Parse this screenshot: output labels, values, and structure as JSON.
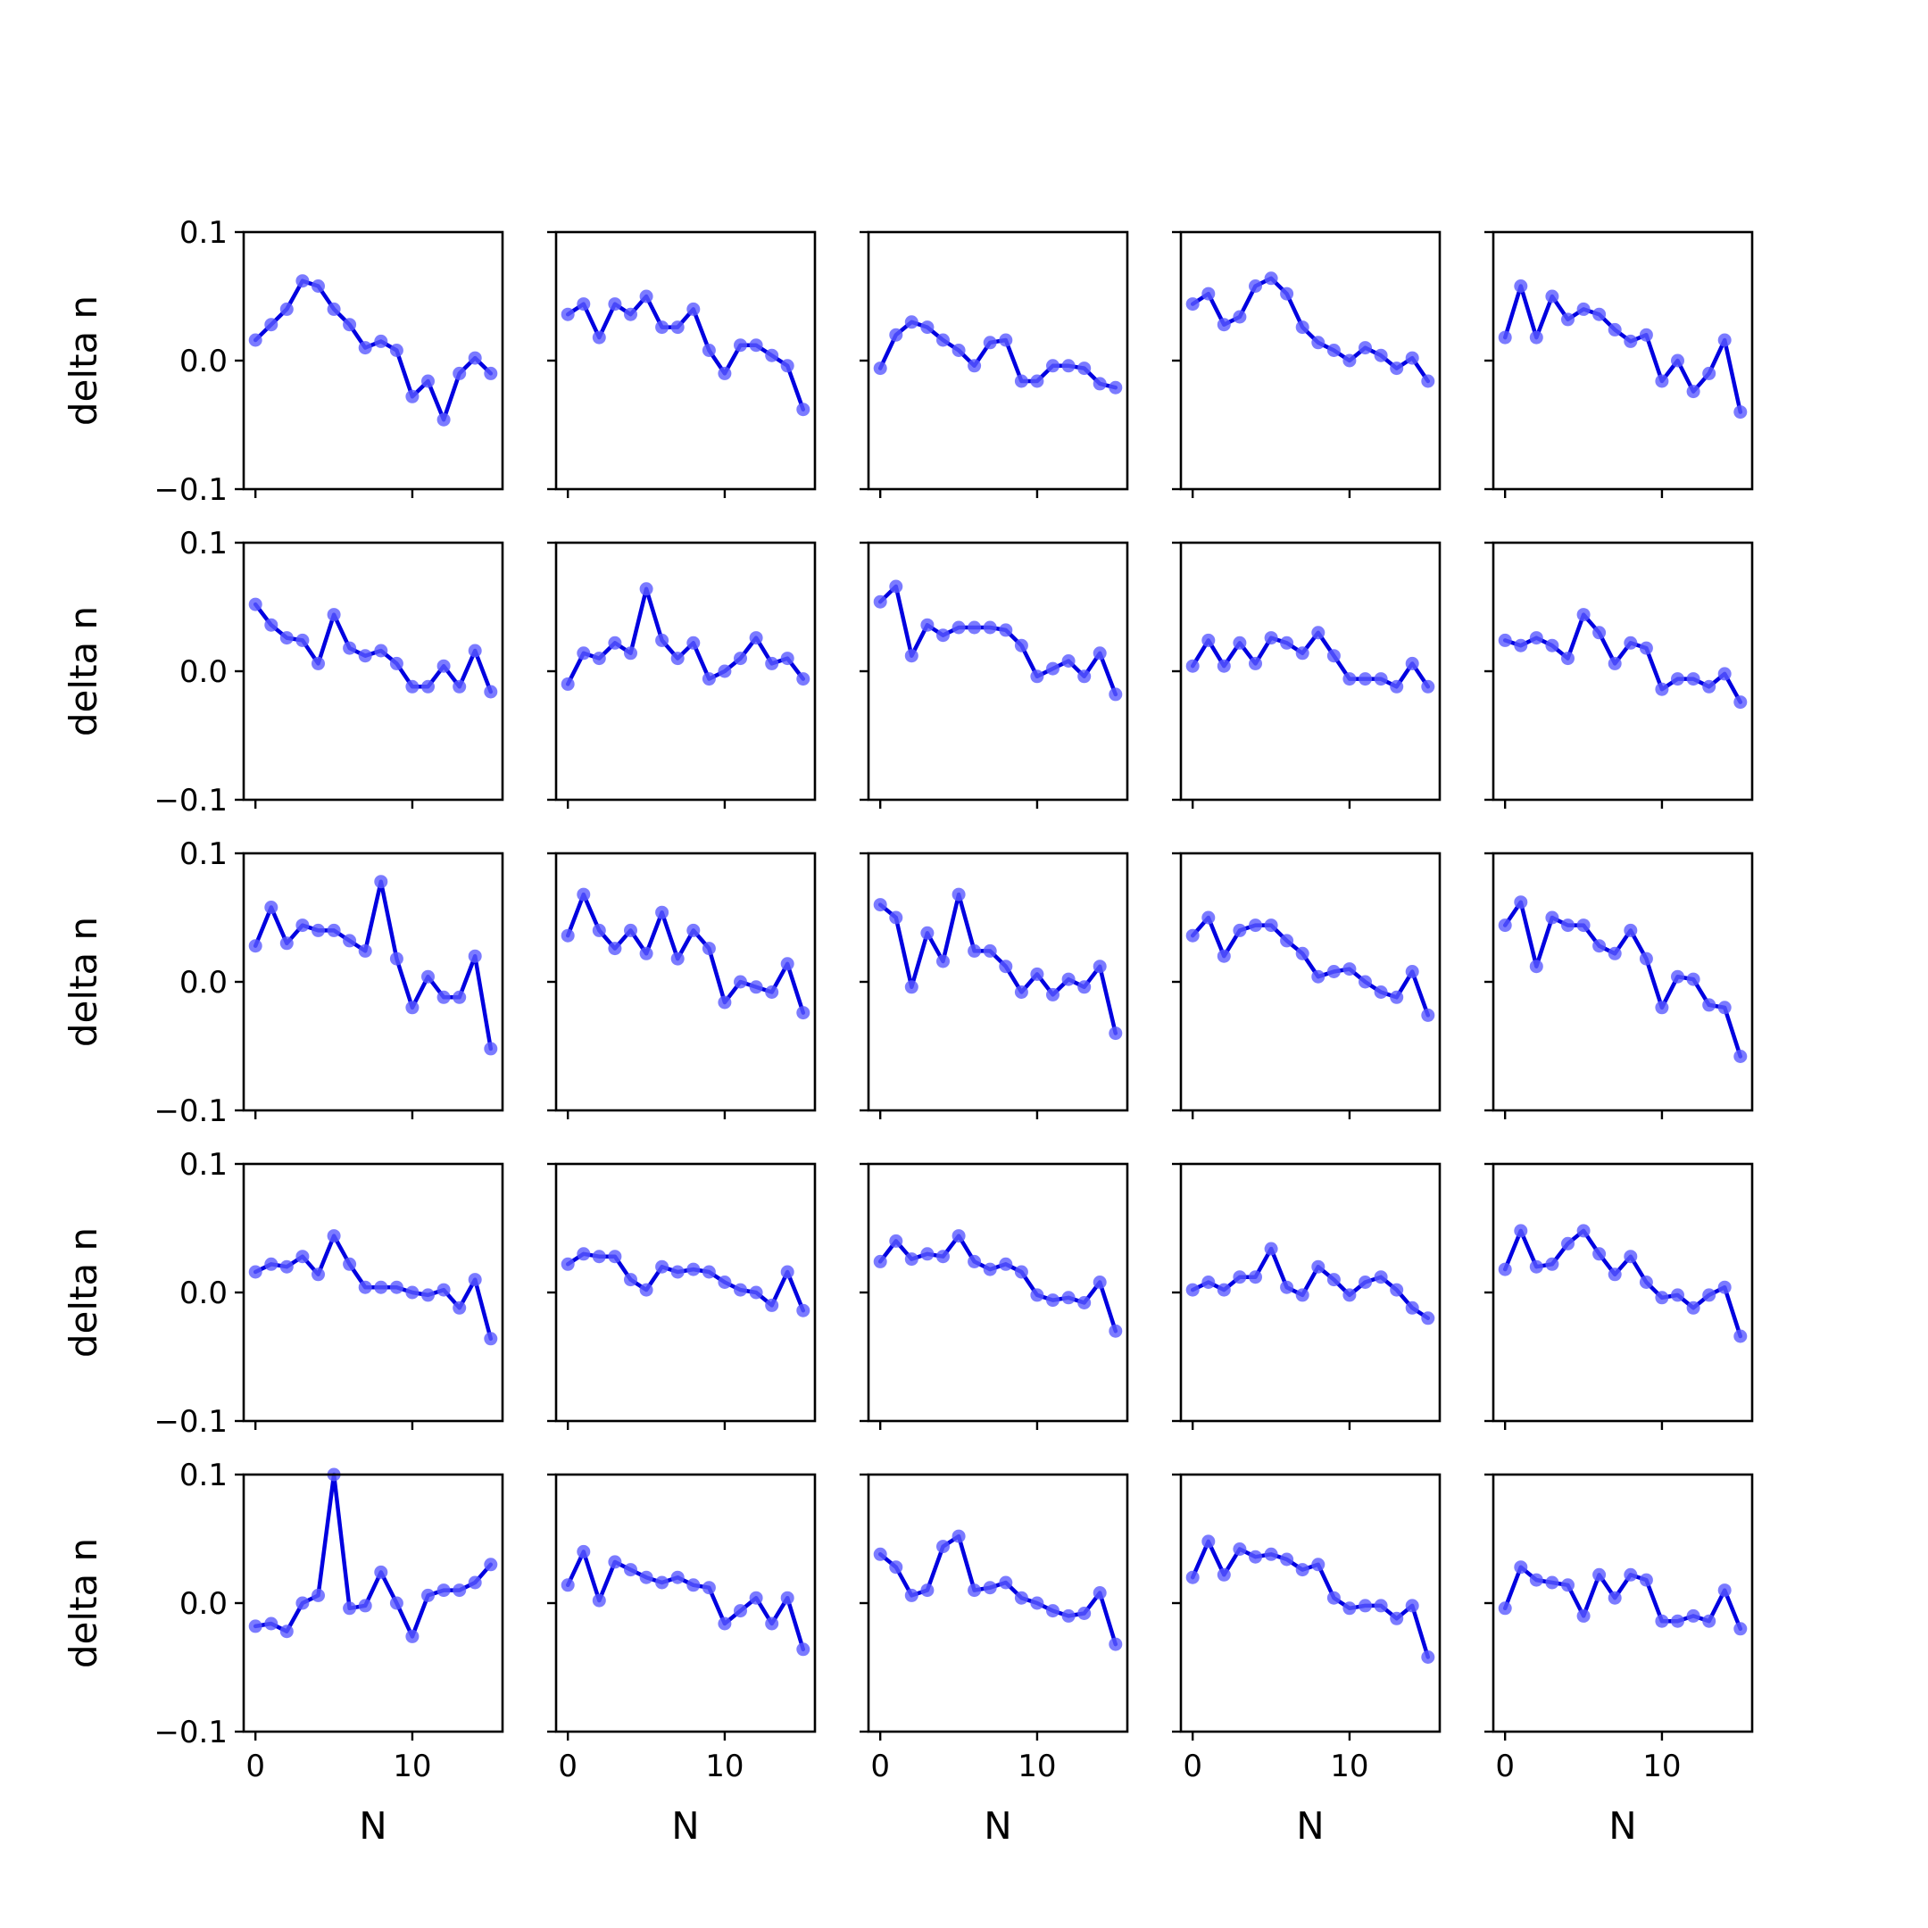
{
  "chart_data": {
    "type": "line",
    "grid": false,
    "layout": "5x5 small multiples, shared axes",
    "xlabel": "N",
    "ylabel": "delta n",
    "xlim": [
      -0.75,
      15.75
    ],
    "ylim": [
      -0.1,
      0.1
    ],
    "xticks": [
      0,
      10
    ],
    "yticks": [
      -0.1,
      0.0,
      0.1
    ],
    "ytick_labels": [
      "−0.1",
      "0.0",
      "0.1"
    ],
    "x": [
      0,
      1,
      2,
      3,
      4,
      5,
      6,
      7,
      8,
      9,
      10,
      11,
      12,
      13,
      14,
      15
    ],
    "line_color": "#0000e0",
    "marker_color": "#5a5aff",
    "panels": [
      [
        0.016,
        0.028,
        0.04,
        0.062,
        0.058,
        0.04,
        0.028,
        0.01,
        0.015,
        0.008,
        -0.028,
        -0.016,
        -0.046,
        -0.01,
        0.002,
        -0.01
      ],
      [
        0.036,
        0.044,
        0.018,
        0.044,
        0.036,
        0.05,
        0.026,
        0.026,
        0.04,
        0.008,
        -0.01,
        0.012,
        0.012,
        0.004,
        -0.004,
        -0.038
      ],
      [
        -0.006,
        0.02,
        0.03,
        0.026,
        0.016,
        0.008,
        -0.004,
        0.014,
        0.016,
        -0.016,
        -0.016,
        -0.004,
        -0.004,
        -0.006,
        -0.018,
        -0.021
      ],
      [
        0.044,
        0.052,
        0.028,
        0.034,
        0.058,
        0.064,
        0.052,
        0.026,
        0.014,
        0.008,
        0.0,
        0.01,
        0.004,
        -0.006,
        0.002,
        -0.016
      ],
      [
        0.018,
        0.058,
        0.018,
        0.05,
        0.032,
        0.04,
        0.036,
        0.024,
        0.015,
        0.02,
        -0.016,
        0.0,
        -0.024,
        -0.01,
        0.016,
        -0.04
      ],
      [
        0.052,
        0.036,
        0.026,
        0.024,
        0.006,
        0.044,
        0.018,
        0.012,
        0.016,
        0.006,
        -0.012,
        -0.012,
        0.004,
        -0.012,
        0.016,
        -0.016
      ],
      [
        -0.01,
        0.014,
        0.01,
        0.022,
        0.014,
        0.064,
        0.024,
        0.01,
        0.022,
        -0.006,
        0.0,
        0.01,
        0.026,
        0.006,
        0.01,
        -0.006
      ],
      [
        0.054,
        0.066,
        0.012,
        0.036,
        0.028,
        0.034,
        0.034,
        0.034,
        0.032,
        0.02,
        -0.004,
        0.002,
        0.008,
        -0.004,
        0.014,
        -0.018
      ],
      [
        0.004,
        0.024,
        0.004,
        0.022,
        0.006,
        0.026,
        0.022,
        0.014,
        0.03,
        0.012,
        -0.006,
        -0.006,
        -0.006,
        -0.012,
        0.006,
        -0.012
      ],
      [
        0.024,
        0.02,
        0.026,
        0.02,
        0.01,
        0.044,
        0.03,
        0.006,
        0.022,
        0.018,
        -0.014,
        -0.006,
        -0.006,
        -0.012,
        -0.002,
        -0.024
      ],
      [
        0.028,
        0.058,
        0.03,
        0.044,
        0.04,
        0.04,
        0.032,
        0.024,
        0.078,
        0.018,
        -0.02,
        0.004,
        -0.012,
        -0.012,
        0.02,
        -0.052
      ],
      [
        0.036,
        0.068,
        0.04,
        0.026,
        0.04,
        0.022,
        0.054,
        0.018,
        0.04,
        0.026,
        -0.016,
        0.0,
        -0.004,
        -0.008,
        0.014,
        -0.024
      ],
      [
        0.06,
        0.05,
        -0.004,
        0.038,
        0.016,
        0.068,
        0.024,
        0.024,
        0.012,
        -0.008,
        0.006,
        -0.01,
        0.002,
        -0.004,
        0.012,
        -0.04
      ],
      [
        0.036,
        0.05,
        0.02,
        0.04,
        0.044,
        0.044,
        0.032,
        0.022,
        0.004,
        0.008,
        0.01,
        0.0,
        -0.008,
        -0.012,
        0.008,
        -0.026
      ],
      [
        0.044,
        0.062,
        0.012,
        0.05,
        0.044,
        0.044,
        0.028,
        0.022,
        0.04,
        0.018,
        -0.02,
        0.004,
        0.002,
        -0.018,
        -0.02,
        -0.058
      ],
      [
        0.016,
        0.022,
        0.02,
        0.028,
        0.014,
        0.044,
        0.022,
        0.004,
        0.004,
        0.004,
        0.0,
        -0.002,
        0.002,
        -0.012,
        0.01,
        -0.036
      ],
      [
        0.022,
        0.03,
        0.028,
        0.028,
        0.01,
        0.002,
        0.02,
        0.016,
        0.018,
        0.016,
        0.008,
        0.002,
        0.0,
        -0.01,
        0.016,
        -0.014
      ],
      [
        0.024,
        0.04,
        0.026,
        0.03,
        0.028,
        0.044,
        0.024,
        0.018,
        0.022,
        0.016,
        -0.002,
        -0.006,
        -0.004,
        -0.008,
        0.008,
        -0.03
      ],
      [
        0.002,
        0.008,
        0.002,
        0.012,
        0.012,
        0.034,
        0.004,
        -0.002,
        0.02,
        0.01,
        -0.002,
        0.008,
        0.012,
        0.002,
        -0.012,
        -0.02
      ],
      [
        0.018,
        0.048,
        0.02,
        0.022,
        0.038,
        0.048,
        0.03,
        0.014,
        0.028,
        0.008,
        -0.004,
        -0.002,
        -0.012,
        -0.002,
        0.004,
        -0.034
      ],
      [
        -0.018,
        -0.016,
        -0.022,
        0.0,
        0.006,
        0.1,
        -0.004,
        -0.002,
        0.024,
        0.0,
        -0.026,
        0.006,
        0.01,
        0.01,
        0.016,
        0.03
      ],
      [
        0.014,
        0.04,
        0.002,
        0.032,
        0.026,
        0.02,
        0.016,
        0.02,
        0.014,
        0.012,
        -0.016,
        -0.006,
        0.004,
        -0.016,
        0.004,
        -0.036
      ],
      [
        0.038,
        0.028,
        0.006,
        0.01,
        0.044,
        0.052,
        0.01,
        0.012,
        0.016,
        0.004,
        0.0,
        -0.006,
        -0.01,
        -0.008,
        0.008,
        -0.032
      ],
      [
        0.02,
        0.048,
        0.022,
        0.042,
        0.036,
        0.038,
        0.034,
        0.026,
        0.03,
        0.004,
        -0.004,
        -0.002,
        -0.002,
        -0.012,
        -0.002,
        -0.042
      ],
      [
        -0.004,
        0.028,
        0.018,
        0.016,
        0.014,
        -0.01,
        0.022,
        0.004,
        0.022,
        0.018,
        -0.014,
        -0.014,
        -0.01,
        -0.014,
        0.01,
        -0.02
      ]
    ]
  }
}
